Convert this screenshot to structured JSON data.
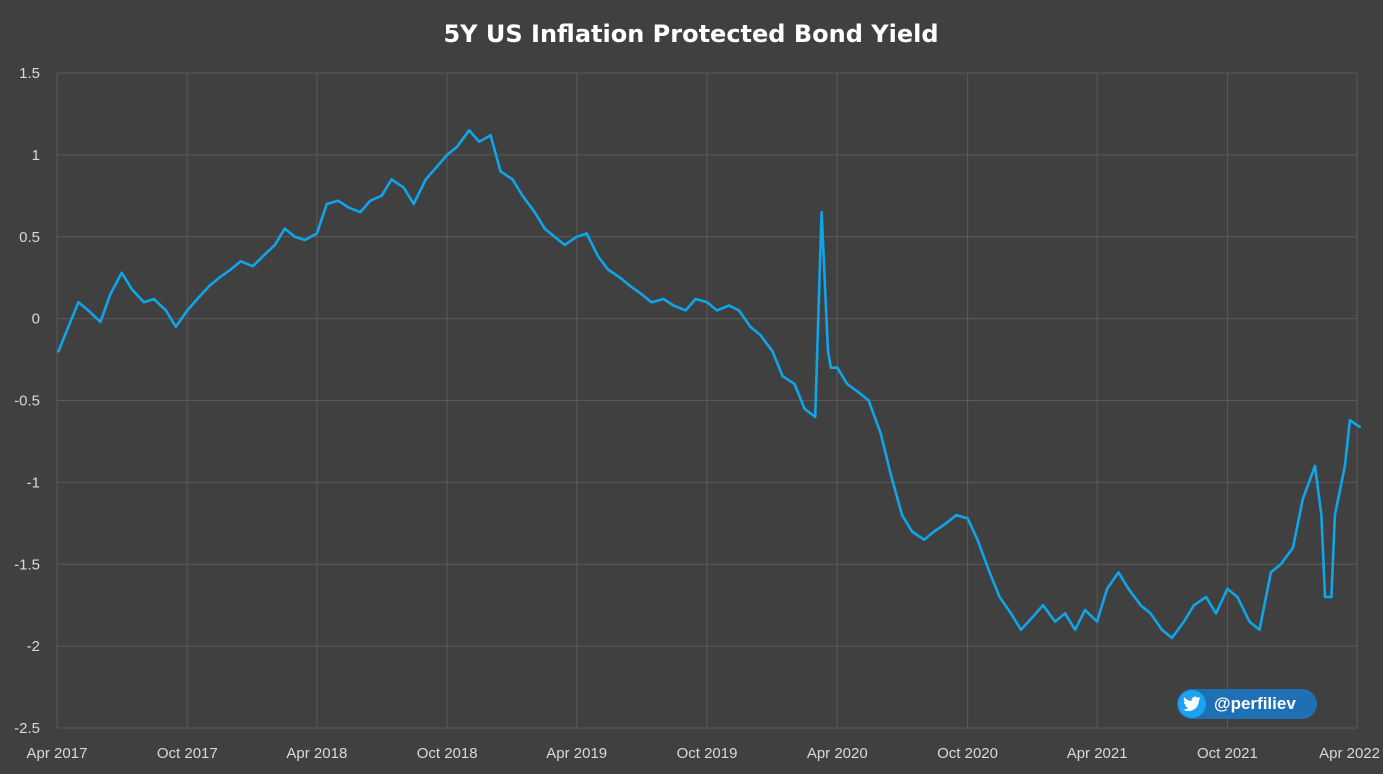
{
  "chart_data": {
    "type": "line",
    "title": "5Y US Inflation Protected Bond Yield",
    "xlabel": "",
    "ylabel": "",
    "ylim": [
      -2.5,
      1.5
    ],
    "yticks": [
      1.5,
      1,
      0.5,
      0,
      -0.5,
      -1,
      -1.5,
      -2,
      -2.5
    ],
    "ytick_labels": [
      "1.5",
      "1",
      "0.5",
      "0",
      "-0.5",
      "-1",
      "-1.5",
      "-2",
      "-2.5"
    ],
    "xlim": [
      "2017-04-01",
      "2022-04-01"
    ],
    "xticks": [
      "2017-04-01",
      "2017-10-01",
      "2018-04-01",
      "2018-10-01",
      "2019-04-01",
      "2019-10-01",
      "2020-04-01",
      "2020-10-01",
      "2021-04-01",
      "2021-10-01",
      "2022-04-01"
    ],
    "xtick_labels": [
      "Apr 2017",
      "Oct 2017",
      "Apr 2018",
      "Oct 2018",
      "Apr 2019",
      "Oct 2019",
      "Apr 2020",
      "Oct 2020",
      "Apr 2021",
      "Oct 2021",
      "Apr 2022"
    ],
    "grid": true,
    "series": [
      {
        "name": "",
        "color": "#0ea5e9",
        "x": [
          "2017-04-03",
          "2017-04-17",
          "2017-05-01",
          "2017-05-15",
          "2017-06-01",
          "2017-06-15",
          "2017-07-01",
          "2017-07-15",
          "2017-08-01",
          "2017-08-15",
          "2017-09-01",
          "2017-09-15",
          "2017-10-01",
          "2017-10-15",
          "2017-11-01",
          "2017-11-15",
          "2017-12-01",
          "2017-12-15",
          "2018-01-01",
          "2018-01-15",
          "2018-02-01",
          "2018-02-15",
          "2018-03-01",
          "2018-03-15",
          "2018-04-01",
          "2018-04-15",
          "2018-05-01",
          "2018-05-15",
          "2018-06-01",
          "2018-06-15",
          "2018-07-01",
          "2018-07-15",
          "2018-08-01",
          "2018-08-15",
          "2018-09-01",
          "2018-09-15",
          "2018-10-01",
          "2018-10-15",
          "2018-11-01",
          "2018-11-15",
          "2018-12-01",
          "2018-12-15",
          "2019-01-01",
          "2019-01-15",
          "2019-02-01",
          "2019-02-15",
          "2019-03-01",
          "2019-03-15",
          "2019-04-01",
          "2019-04-15",
          "2019-05-01",
          "2019-05-15",
          "2019-06-01",
          "2019-06-15",
          "2019-07-01",
          "2019-07-15",
          "2019-08-01",
          "2019-08-15",
          "2019-09-01",
          "2019-09-15",
          "2019-10-01",
          "2019-10-15",
          "2019-11-01",
          "2019-11-15",
          "2019-12-01",
          "2019-12-15",
          "2020-01-01",
          "2020-01-15",
          "2020-02-01",
          "2020-02-15",
          "2020-03-01",
          "2020-03-10",
          "2020-03-19",
          "2020-03-23",
          "2020-04-01",
          "2020-04-15",
          "2020-05-01",
          "2020-05-15",
          "2020-06-01",
          "2020-06-15",
          "2020-07-01",
          "2020-07-15",
          "2020-08-01",
          "2020-08-15",
          "2020-09-01",
          "2020-09-15",
          "2020-10-01",
          "2020-10-15",
          "2020-11-01",
          "2020-11-15",
          "2020-12-01",
          "2020-12-15",
          "2021-01-01",
          "2021-01-15",
          "2021-02-01",
          "2021-02-15",
          "2021-03-01",
          "2021-03-15",
          "2021-04-01",
          "2021-04-15",
          "2021-05-01",
          "2021-05-15",
          "2021-06-01",
          "2021-06-15",
          "2021-07-01",
          "2021-07-15",
          "2021-08-01",
          "2021-08-15",
          "2021-09-01",
          "2021-09-15",
          "2021-10-01",
          "2021-10-15",
          "2021-11-01",
          "2021-11-15",
          "2021-12-01",
          "2021-12-15",
          "2022-01-01",
          "2022-01-15",
          "2022-02-01",
          "2022-02-10",
          "2022-02-15",
          "2022-02-24",
          "2022-03-01",
          "2022-03-15",
          "2022-03-22",
          "2022-04-01",
          "2022-04-05"
        ],
        "y": [
          -0.2,
          -0.05,
          0.1,
          0.05,
          -0.02,
          0.15,
          0.28,
          0.18,
          0.1,
          0.12,
          0.05,
          -0.05,
          0.05,
          0.12,
          0.2,
          0.25,
          0.3,
          0.35,
          0.32,
          0.38,
          0.45,
          0.55,
          0.5,
          0.48,
          0.52,
          0.7,
          0.72,
          0.68,
          0.65,
          0.72,
          0.75,
          0.85,
          0.8,
          0.7,
          0.85,
          0.92,
          1.0,
          1.05,
          1.15,
          1.08,
          1.12,
          0.9,
          0.85,
          0.75,
          0.65,
          0.55,
          0.5,
          0.45,
          0.5,
          0.52,
          0.38,
          0.3,
          0.25,
          0.2,
          0.15,
          0.1,
          0.12,
          0.08,
          0.05,
          0.12,
          0.1,
          0.05,
          0.08,
          0.05,
          -0.05,
          -0.1,
          -0.2,
          -0.35,
          -0.4,
          -0.55,
          -0.6,
          0.65,
          -0.2,
          -0.3,
          -0.3,
          -0.4,
          -0.45,
          -0.5,
          -0.7,
          -0.95,
          -1.2,
          -1.3,
          -1.35,
          -1.3,
          -1.25,
          -1.2,
          -1.22,
          -1.35,
          -1.55,
          -1.7,
          -1.8,
          -1.9,
          -1.82,
          -1.75,
          -1.85,
          -1.8,
          -1.9,
          -1.78,
          -1.85,
          -1.65,
          -1.55,
          -1.65,
          -1.75,
          -1.8,
          -1.9,
          -1.95,
          -1.85,
          -1.75,
          -1.7,
          -1.8,
          -1.65,
          -1.7,
          -1.85,
          -1.9,
          -1.55,
          -1.5,
          -1.4,
          -1.1,
          -0.9,
          -1.2,
          -1.7,
          -1.7,
          -1.2,
          -0.9,
          -0.62,
          -0.65,
          -0.66
        ]
      }
    ]
  },
  "badge": {
    "handle": "@perfiliev",
    "icon": "twitter-bird-icon",
    "color": "#1f6fb5"
  }
}
